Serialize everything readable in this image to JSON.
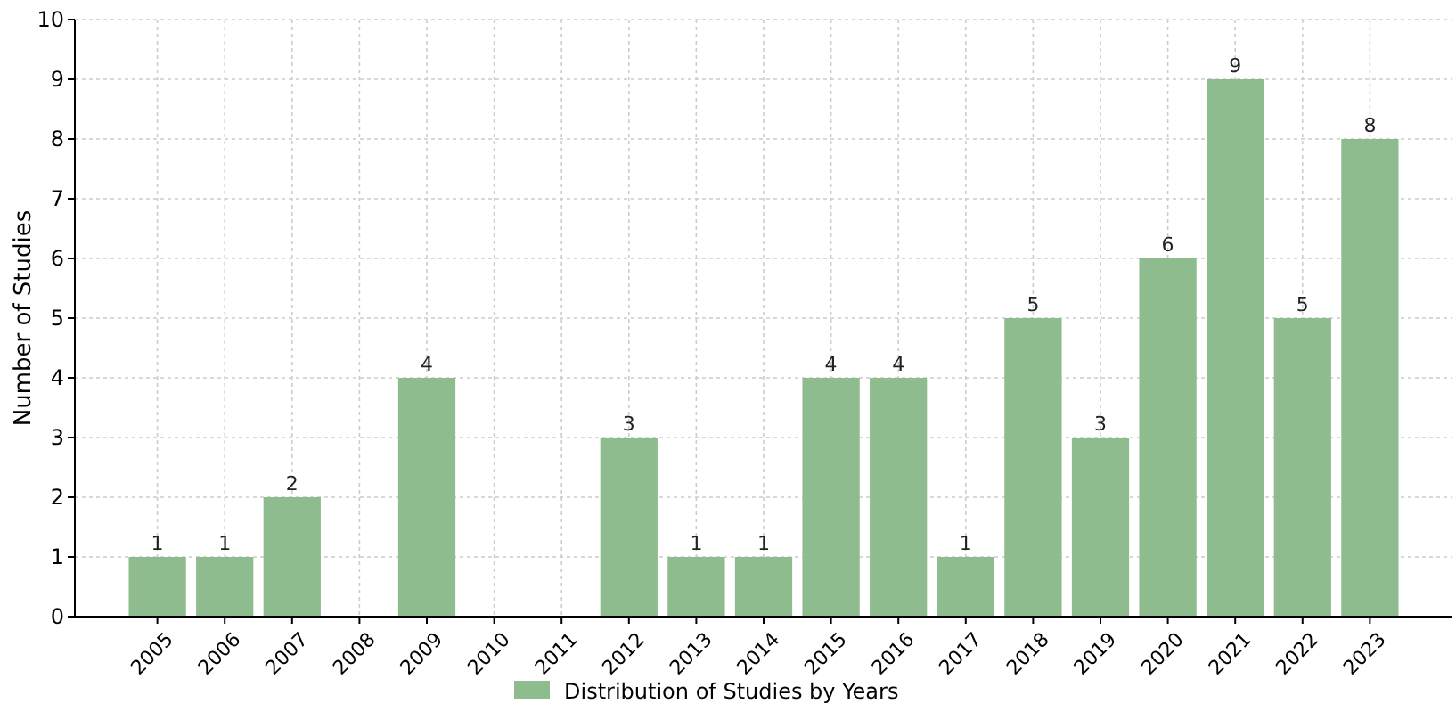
{
  "chart_data": {
    "type": "bar",
    "ylabel": "Number of Studies",
    "categories": [
      "2005",
      "2006",
      "2007",
      "2008",
      "2009",
      "2010",
      "2011",
      "2012",
      "2013",
      "2014",
      "2015",
      "2016",
      "2017",
      "2018",
      "2019",
      "2020",
      "2021",
      "2022",
      "2023"
    ],
    "series": [
      {
        "name": "Distribution of Studies by Years",
        "color": "#8fbc8f",
        "values": [
          1,
          1,
          2,
          0,
          4,
          0,
          0,
          3,
          1,
          1,
          4,
          4,
          1,
          5,
          3,
          6,
          9,
          5,
          8
        ],
        "value_labels": [
          "1",
          "1",
          "2",
          null,
          "4",
          null,
          null,
          "3",
          "1",
          "1",
          "4",
          "4",
          "1",
          "5",
          "3",
          "6",
          "9",
          "5",
          "8"
        ]
      }
    ],
    "ylim": [
      0,
      10
    ],
    "yticks": [
      0,
      1,
      2,
      3,
      4,
      5,
      6,
      7,
      8,
      9,
      10
    ],
    "grid": true,
    "legend": "bottom"
  }
}
